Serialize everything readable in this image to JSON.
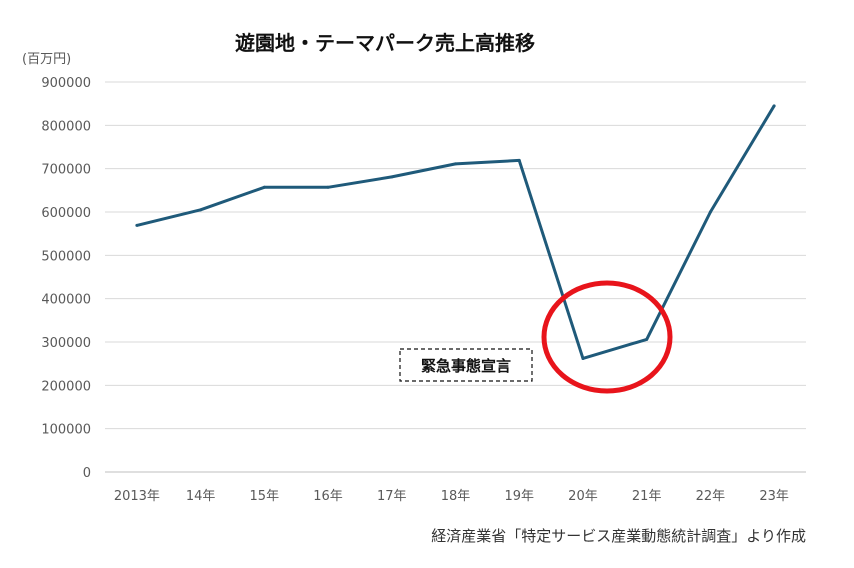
{
  "chart_data": {
    "type": "line",
    "title": "遊園地・テーマパーク売上高推移",
    "unit_label": "(百万円)",
    "categories": [
      "2013年",
      "14年",
      "15年",
      "16年",
      "17年",
      "18年",
      "19年",
      "20年",
      "21年",
      "22年",
      "23年"
    ],
    "series": [
      {
        "color": "#1f5a7a",
        "values": [
          569000,
          605000,
          657000,
          657000,
          681000,
          711000,
          719000,
          262000,
          306000,
          600000,
          845000
        ]
      }
    ],
    "ylim": [
      0,
      900000
    ],
    "yticks": [
      "0",
      "100000",
      "200000",
      "300000",
      "400000",
      "500000",
      "600000",
      "700000",
      "800000",
      "900000"
    ],
    "grid": true,
    "legend": "none",
    "annotation": {
      "text": "緊急事態宣言",
      "highlight": "red-circle-around-2020-2021",
      "highlight_color": "#e8141b"
    },
    "source": "経済産業省「特定サービス産業動態統計調査」より作成"
  }
}
